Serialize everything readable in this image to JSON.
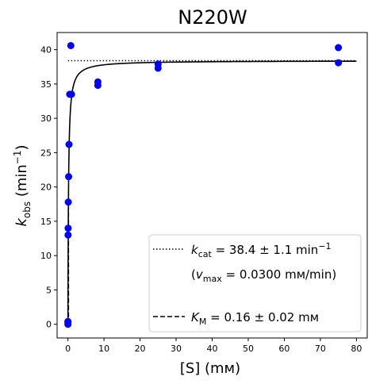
{
  "chart_data": {
    "type": "scatter",
    "title": "N220W",
    "xlabel": "[S] (mм)",
    "ylabel_main": "k",
    "ylabel_sub": "obs",
    "ylabel_unit_open": " (min",
    "ylabel_unit_sup": "−1",
    "ylabel_unit_close": ")",
    "xlim": [
      -3,
      83
    ],
    "ylim": [
      -2,
      42.5
    ],
    "xticks": [
      0,
      10,
      20,
      30,
      40,
      50,
      60,
      70,
      80
    ],
    "yticks": [
      0,
      5,
      10,
      15,
      20,
      25,
      30,
      35,
      40
    ],
    "grid": false,
    "legend_position": "lower-right",
    "points": {
      "color": "#0000ff",
      "x": [
        0.0,
        0.0,
        0.02,
        0.04,
        0.06,
        0.1,
        0.2,
        0.3,
        0.5,
        0.8,
        1.0,
        8.3,
        8.3,
        25,
        25,
        75,
        75
      ],
      "y": [
        0.0,
        0.4,
        0.3,
        13.0,
        14.0,
        17.8,
        21.5,
        26.2,
        33.5,
        40.6,
        33.5,
        35.3,
        34.8,
        37.3,
        37.9,
        40.3,
        38.1
      ]
    },
    "fit": {
      "model": "michaelis-menten",
      "kcat": 38.4,
      "km": 0.16,
      "x_max": 80
    },
    "kcat_line": {
      "value": 38.4,
      "x_range": [
        0,
        80
      ],
      "style": "dotted"
    },
    "km_line": {
      "value": 0.16,
      "style": "dashed"
    },
    "legend": {
      "kcat_sym": "k",
      "kcat_sub": "cat",
      "kcat_text": " = 38.4 ± 1.1 min",
      "kcat_sup": "−1",
      "vmax_open": "(",
      "vmax_sym": "v",
      "vmax_sub": "max",
      "vmax_text": " = 0.0300 mм/min)",
      "km_sym": "K",
      "km_sub": "M",
      "km_text": " = 0.16 ± 0.02 mм"
    }
  }
}
